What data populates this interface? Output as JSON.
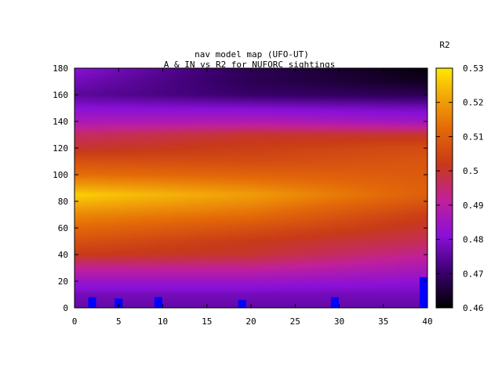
{
  "chart_data": {
    "type": "heatmap",
    "title_lines": [
      "nav model map (UFO-UT)",
      "A & IN vs R2 for NUFORC sightings"
    ],
    "xlabel": "",
    "ylabel": "",
    "x_range": [
      0,
      40
    ],
    "y_range": [
      0,
      180
    ],
    "x_ticks": [
      0,
      5,
      10,
      15,
      20,
      25,
      30,
      35,
      40
    ],
    "y_ticks": [
      0,
      20,
      40,
      60,
      80,
      100,
      120,
      140,
      160,
      180
    ],
    "colorbar": {
      "label": "R2",
      "range": [
        0.46,
        0.53
      ],
      "ticks": [
        0.46,
        0.47,
        0.48,
        0.49,
        0.5,
        0.51,
        0.52,
        0.53
      ],
      "tick_labels": [
        "0.46",
        "0.47",
        "0.48",
        "0.49",
        "0.5",
        "0.51",
        "0.52",
        "0.53"
      ],
      "palette": "black-purple-red-orange-yellow"
    },
    "y_profile_at_x": {
      "y": [
        0,
        10,
        20,
        30,
        40,
        50,
        60,
        70,
        80,
        85,
        90,
        100,
        110,
        120,
        130,
        140,
        150,
        160,
        170,
        180
      ],
      "at_x0": [
        0.476,
        0.478,
        0.484,
        0.492,
        0.502,
        0.507,
        0.512,
        0.517,
        0.524,
        0.527,
        0.522,
        0.513,
        0.507,
        0.5,
        0.496,
        0.487,
        0.481,
        0.475,
        0.478,
        0.481
      ],
      "at_x20": [
        0.476,
        0.478,
        0.484,
        0.492,
        0.5,
        0.502,
        0.507,
        0.513,
        0.518,
        0.52,
        0.517,
        0.511,
        0.506,
        0.503,
        0.5,
        0.488,
        0.48,
        0.47,
        0.468,
        0.468
      ],
      "at_x40": [
        0.476,
        0.478,
        0.482,
        0.487,
        0.492,
        0.497,
        0.5,
        0.503,
        0.508,
        0.51,
        0.51,
        0.509,
        0.508,
        0.506,
        0.5,
        0.485,
        0.478,
        0.468,
        0.463,
        0.461
      ]
    },
    "markers": {
      "color": "#0000ff",
      "points": [
        {
          "x": 2,
          "y0": 0,
          "y1": 8
        },
        {
          "x": 5,
          "y0": 0,
          "y1": 7
        },
        {
          "x": 9.5,
          "y0": 0,
          "y1": 8
        },
        {
          "x": 19,
          "y0": 0,
          "y1": 6
        },
        {
          "x": 29.5,
          "y0": 0,
          "y1": 8
        },
        {
          "x": 39.7,
          "y0": 0,
          "y1": 23
        }
      ]
    }
  }
}
